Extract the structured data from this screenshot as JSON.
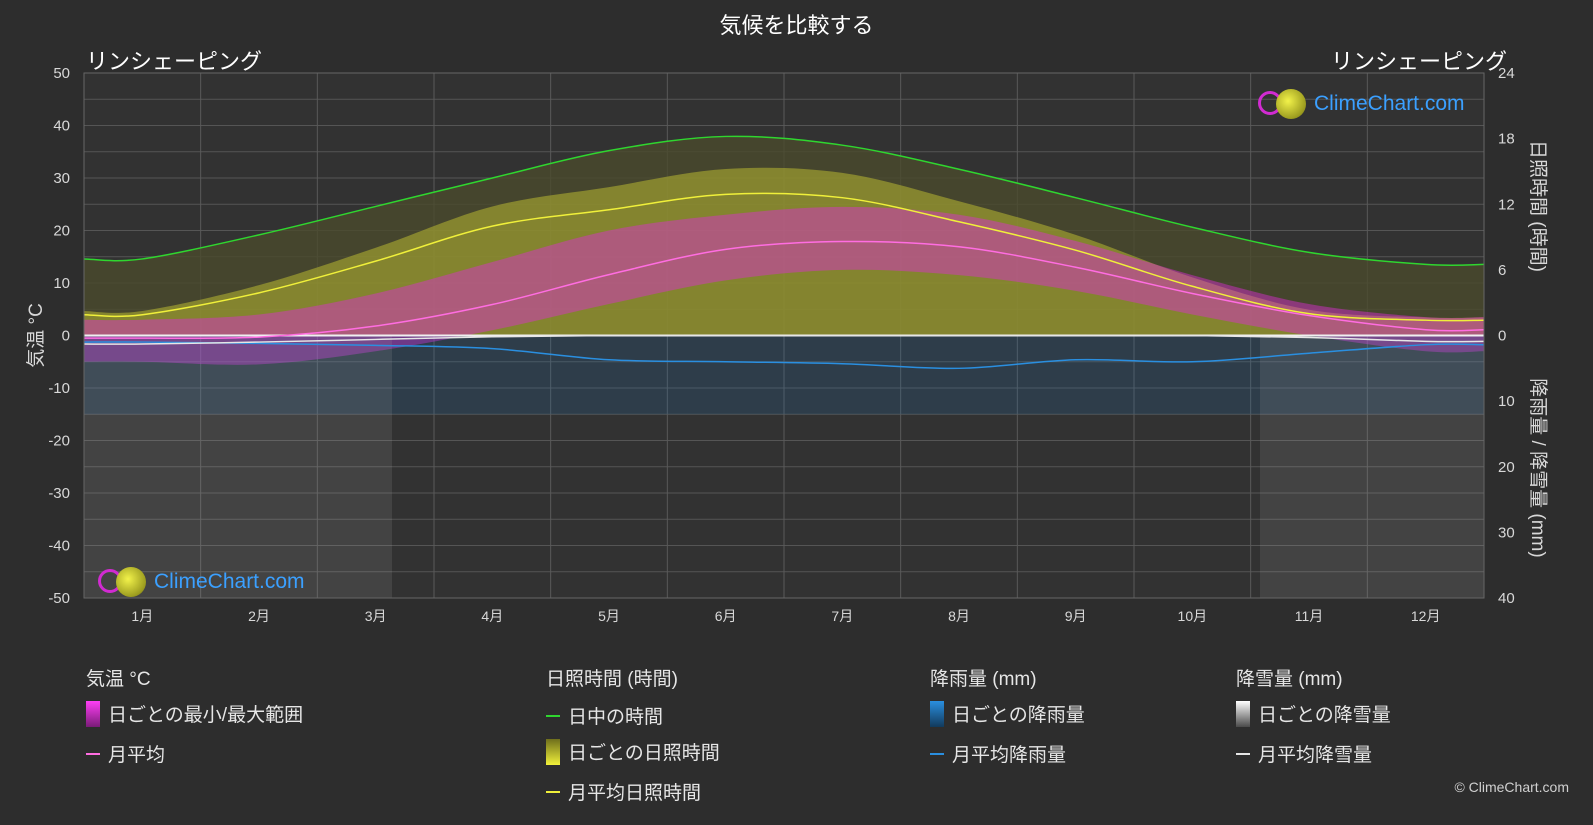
{
  "title": "気候を比較する",
  "location_left": "リンシェーピング",
  "location_right": "リンシェーピング",
  "logo_text": "ClimeChart.com",
  "copyright": "© ClimeChart.com",
  "colors": {
    "background": "#2d2d2d",
    "daylight": "#2fd62f",
    "sunshine_avg": "#f0f03a",
    "temp_avg": "#ff6de1",
    "rain_avg": "#2a8fe0",
    "snow_avg": "#e6e6e6",
    "temp_range": "#e02ad9",
    "sunshine_band": "#b8b832",
    "rain_band": "#1c6fb8",
    "snow_band": "#a0a0a0"
  },
  "chart_data": {
    "type": "line",
    "categories": [
      "1月",
      "2月",
      "3月",
      "4月",
      "5月",
      "6月",
      "7月",
      "8月",
      "9月",
      "10月",
      "11月",
      "12月"
    ],
    "y_left": {
      "label": "気温 °C",
      "range": [
        -50,
        50
      ],
      "ticks": [
        "50",
        "40",
        "30",
        "20",
        "10",
        "0",
        "-10",
        "-20",
        "-30",
        "-40",
        "-50"
      ]
    },
    "y_right_top": {
      "label": "日照時間 (時間)",
      "range": [
        0,
        24
      ],
      "ticks": [
        "24",
        "18",
        "12",
        "6",
        "0"
      ]
    },
    "y_right_bottom": {
      "label": "降雨量 / 降雪量 (mm)",
      "range": [
        0,
        40
      ],
      "ticks": [
        "10",
        "20",
        "30",
        "40"
      ]
    },
    "grid": true,
    "series": [
      {
        "name": "日中の時間",
        "unit": "hours",
        "values": [
          7.0,
          9.2,
          11.8,
          14.4,
          16.9,
          18.2,
          17.4,
          15.2,
          12.6,
          9.9,
          7.6,
          6.5
        ]
      },
      {
        "name": "月平均日照時間",
        "unit": "hours",
        "values": [
          1.9,
          3.9,
          6.8,
          10.0,
          11.5,
          12.9,
          12.6,
          10.4,
          7.8,
          4.5,
          2.0,
          1.4
        ]
      },
      {
        "name": "月平均",
        "unit": "°C",
        "values": [
          -0.5,
          -0.3,
          1.8,
          5.9,
          11.6,
          16.4,
          17.9,
          16.9,
          13.0,
          8.0,
          3.8,
          1.1
        ]
      },
      {
        "name": "月平均降雨量",
        "unit": "mm",
        "values": [
          1.0,
          1.2,
          1.5,
          2.0,
          3.7,
          4.0,
          4.3,
          5.0,
          3.7,
          4.0,
          2.7,
          1.4
        ]
      },
      {
        "name": "月平均降雪量",
        "unit": "mm",
        "values": [
          1.3,
          1.0,
          0.6,
          0.2,
          0.0,
          0.0,
          0.0,
          0.0,
          0.0,
          0.0,
          0.3,
          0.9
        ]
      }
    ],
    "temp_range_band": {
      "name": "日ごとの最小/最大範囲",
      "min": [
        -5.0,
        -5.5,
        -3.0,
        1.0,
        6.0,
        10.5,
        12.5,
        11.5,
        8.5,
        4.0,
        0.0,
        -3.0
      ],
      "max": [
        3.0,
        4.0,
        8.0,
        14.0,
        20.0,
        23.0,
        24.5,
        23.0,
        18.0,
        11.5,
        6.0,
        3.5
      ]
    }
  },
  "legend": {
    "temperature": {
      "heading": "気温 °C",
      "items": [
        "日ごとの最小/最大範囲",
        "月平均"
      ]
    },
    "sunshine": {
      "heading": "日照時間 (時間)",
      "items": [
        "日中の時間",
        "日ごとの日照時間",
        "月平均日照時間"
      ]
    },
    "rain": {
      "heading": "降雨量 (mm)",
      "items": [
        "日ごとの降雨量",
        "月平均降雨量"
      ]
    },
    "snow": {
      "heading": "降雪量 (mm)",
      "items": [
        "日ごとの降雪量",
        "月平均降雪量"
      ]
    }
  }
}
